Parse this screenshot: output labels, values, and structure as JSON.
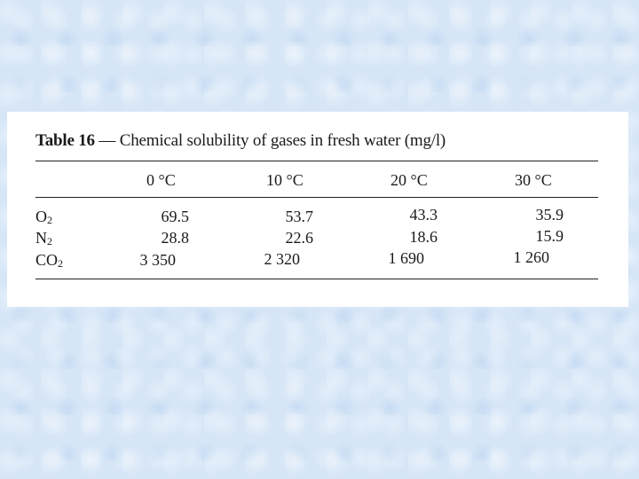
{
  "table": {
    "title_label": "Table 16",
    "title_text": "— Chemical solubility of gases in fresh water (mg/l)",
    "columns": [
      "0 °C",
      "10 °C",
      "20 °C",
      "30 °C"
    ],
    "rows": [
      {
        "gas": "O",
        "sub": "2",
        "values": [
          "69.5",
          "53.7",
          "43.3",
          "35.9"
        ]
      },
      {
        "gas": "N",
        "sub": "2",
        "values": [
          "28.8",
          "22.6",
          "18.6",
          "15.9"
        ]
      },
      {
        "gas": "CO",
        "sub": "2",
        "values": [
          "3 350",
          "2 320",
          "1 690",
          "1 260"
        ]
      }
    ]
  }
}
